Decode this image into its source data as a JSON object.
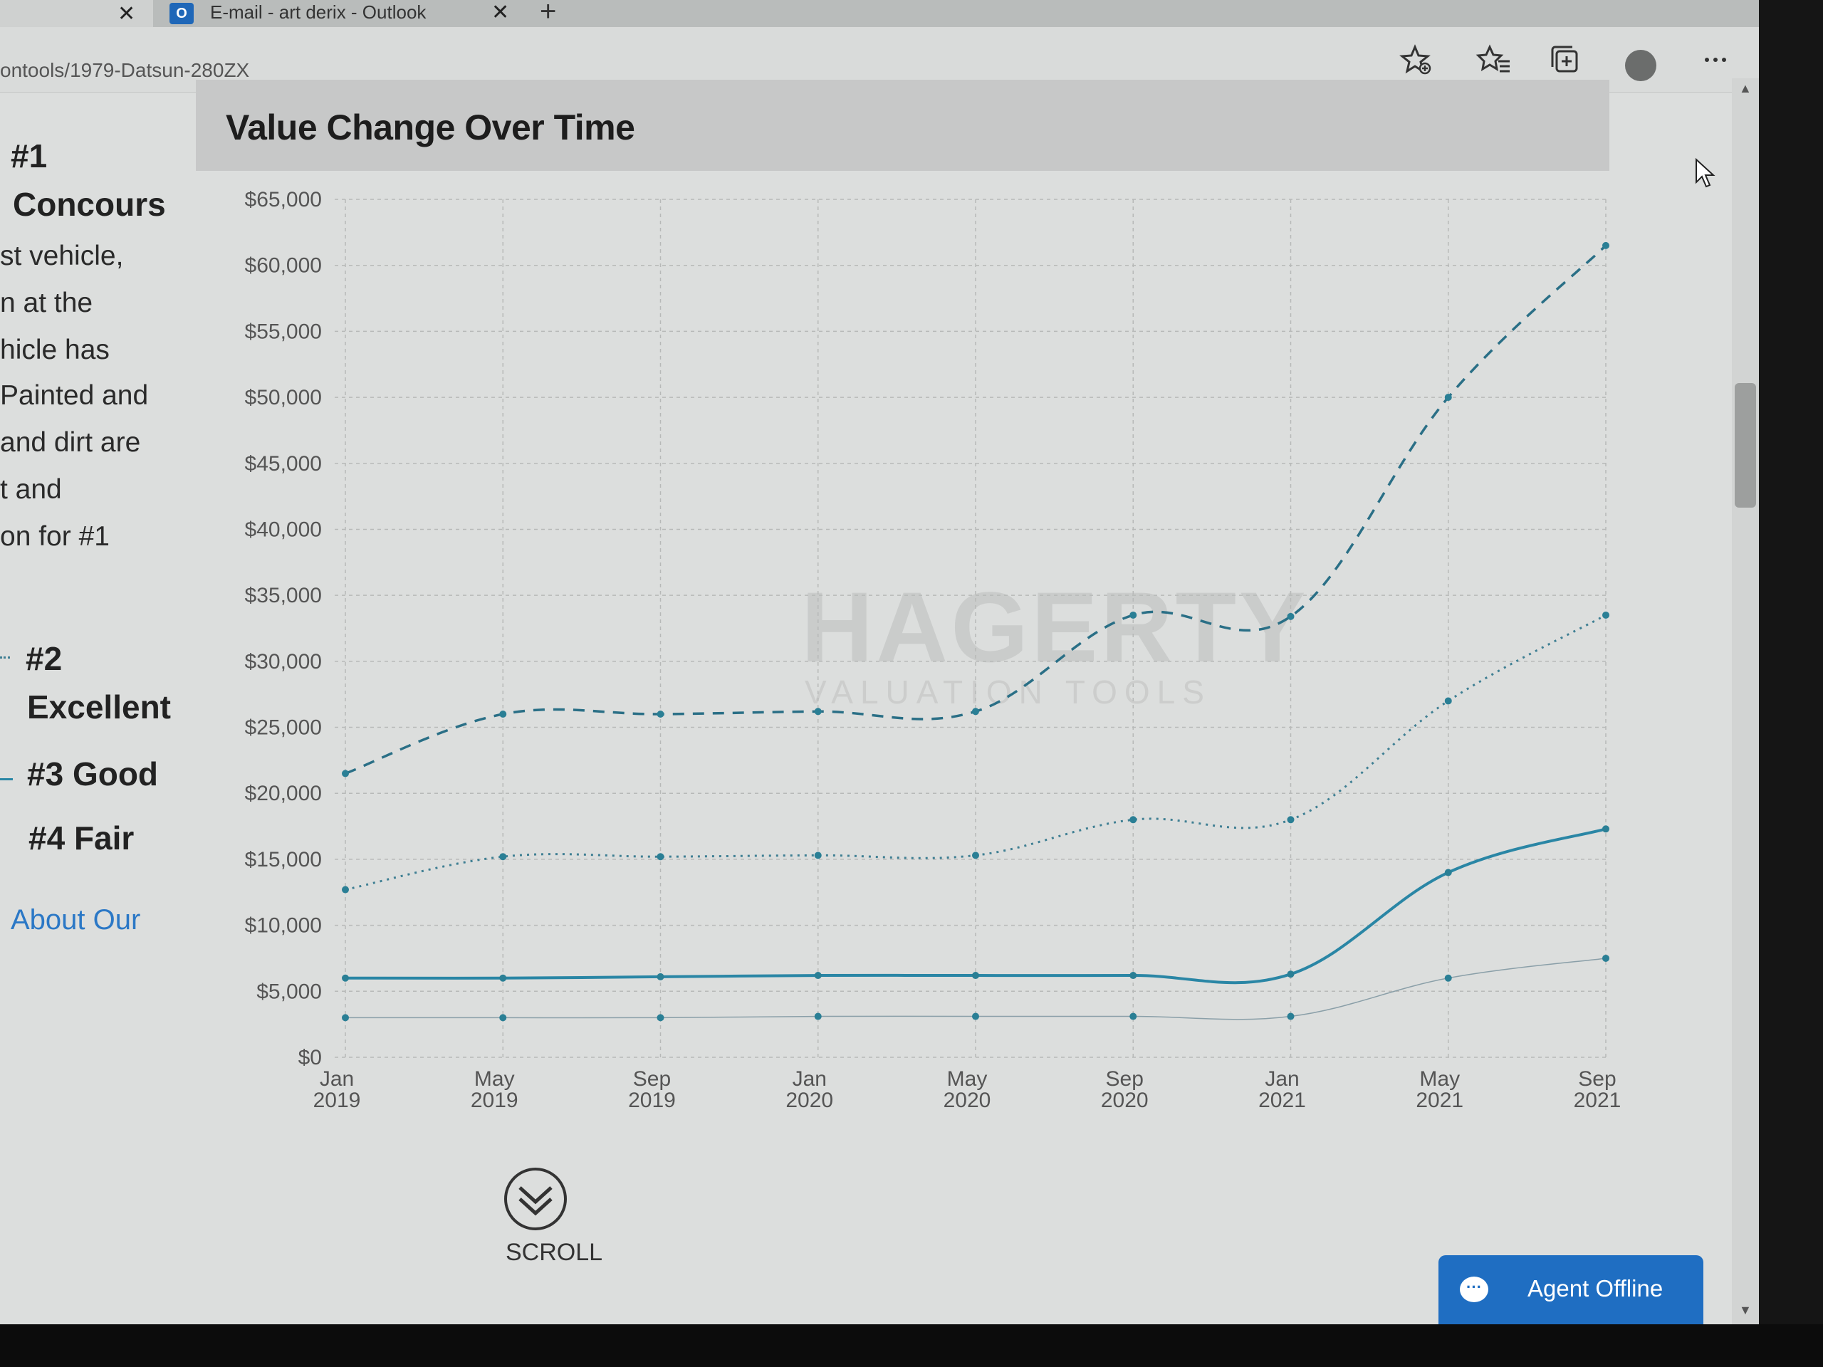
{
  "tabs": [
    {
      "title": "",
      "close": "✕"
    },
    {
      "title": "E-mail - art derix - Outlook",
      "close": "✕"
    }
  ],
  "new_tab_glyph": "+",
  "address_bar": {
    "url": "ontools/1979-Datsun-280ZX"
  },
  "toolbar_icons": [
    "add-favorite-icon",
    "favorites-icon",
    "collections-icon",
    "profile-icon",
    "more-icon"
  ],
  "left_panel": {
    "concours_number": "#1",
    "concours_name": "Concours",
    "description_lines": [
      "st vehicle,",
      "n at the",
      "hicle has",
      "Painted and",
      "and dirt are",
      "t and",
      "on for #1"
    ],
    "excellent_number": "#2",
    "excellent_name": "Excellent",
    "good_label": "#3 Good",
    "fair_label": "#4 Fair",
    "about_link": "About Our"
  },
  "chart_data": {
    "type": "line",
    "title": "Value Change Over Time",
    "y_ticks": [
      "$0",
      "$5,000",
      "$10,000",
      "$15,000",
      "$20,000",
      "$25,000",
      "$30,000",
      "$35,000",
      "$40,000",
      "$45,000",
      "$50,000",
      "$55,000",
      "$60,000",
      "$65,000"
    ],
    "ylim": [
      0,
      65000
    ],
    "categories": [
      "Jan 2019",
      "May 2019",
      "Sep 2019",
      "Jan 2020",
      "May 2020",
      "Sep 2020",
      "Jan 2021",
      "May 2021",
      "Sep 2021"
    ],
    "x_tick_lines": [
      [
        "Jan",
        "2019"
      ],
      [
        "May",
        "2019"
      ],
      [
        "Sep",
        "2019"
      ],
      [
        "Jan",
        "2020"
      ],
      [
        "May",
        "2020"
      ],
      [
        "Sep",
        "2020"
      ],
      [
        "Jan",
        "2021"
      ],
      [
        "May",
        "2021"
      ],
      [
        "Sep",
        "2021"
      ]
    ],
    "series": [
      {
        "values": [
          21500,
          26000,
          26000,
          26200,
          26200,
          33500,
          33400,
          50000,
          61500
        ],
        "style": "dashed",
        "color": "#2a6f86"
      },
      {
        "values": [
          12700,
          15200,
          15200,
          15300,
          15300,
          18000,
          18000,
          27000,
          33500
        ],
        "style": "dotted",
        "color": "#3f7f93"
      },
      {
        "values": [
          6000,
          6000,
          6100,
          6200,
          6200,
          6200,
          6300,
          14000,
          17300
        ],
        "style": "solid",
        "color": "#2a86a5"
      },
      {
        "values": [
          3000,
          3000,
          3000,
          3100,
          3100,
          3100,
          3100,
          6000,
          7500
        ],
        "style": "thin",
        "color": "#8a9fa8"
      }
    ],
    "grid": true,
    "legend": "left"
  },
  "watermark": {
    "brand": "HAGERTY",
    "sub": "VALUATION TOOLS"
  },
  "scroll_prompt": "SCROLL",
  "chat": {
    "label": "Agent Offline"
  },
  "scrollbar": {
    "up": "▲",
    "down": "▼"
  }
}
